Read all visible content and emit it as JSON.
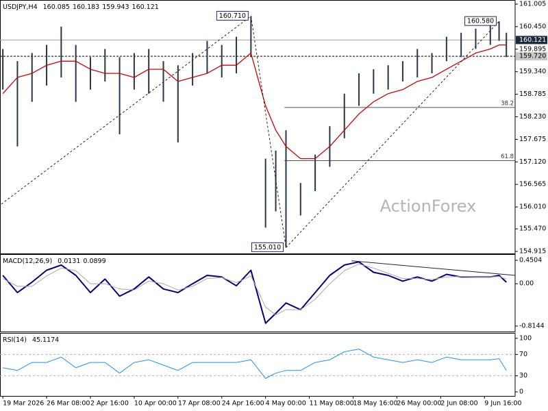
{
  "chart_data": [
    {
      "type": "hilo",
      "title": "USDJPY,H4",
      "readings": [
        160.085,
        160.183,
        159.943,
        160.121
      ],
      "watermark": "ActionForex",
      "x": [
        1,
        11,
        21,
        31,
        41,
        51,
        61,
        71,
        81,
        91,
        101,
        111,
        121,
        131,
        141,
        151,
        161,
        171,
        181,
        188,
        195,
        205,
        215,
        225,
        235,
        245,
        255,
        265,
        275,
        285,
        295,
        305,
        315,
        325,
        335,
        341,
        346
      ],
      "high": [
        159.9,
        159.6,
        159.8,
        160.0,
        160.45,
        160.0,
        159.7,
        159.9,
        159.7,
        159.8,
        159.9,
        159.6,
        159.5,
        159.8,
        160.1,
        160.0,
        160.2,
        160.71,
        157.2,
        157.4,
        157.9,
        156.6,
        157.3,
        158.0,
        158.8,
        159.3,
        159.4,
        159.5,
        159.6,
        159.9,
        159.8,
        160.2,
        160.3,
        160.4,
        160.5,
        160.58,
        160.3
      ],
      "low": [
        158.9,
        157.5,
        158.6,
        159.0,
        159.2,
        158.6,
        158.9,
        159.1,
        157.8,
        158.9,
        158.8,
        158.6,
        157.6,
        159.0,
        159.3,
        159.2,
        159.3,
        159.7,
        155.5,
        155.9,
        155.01,
        155.8,
        156.4,
        157.0,
        157.7,
        158.5,
        158.8,
        158.9,
        159.1,
        159.2,
        159.3,
        159.6,
        159.7,
        159.9,
        160.0,
        160.1,
        159.7
      ],
      "color": "#263646",
      "series": [
        {
          "color": "#d40000",
          "values": [
            158.8,
            159.2,
            159.3,
            159.5,
            159.6,
            159.6,
            159.4,
            159.3,
            159.3,
            159.2,
            159.4,
            159.4,
            159.1,
            159.2,
            159.3,
            159.5,
            159.5,
            159.8,
            158.5,
            157.9,
            157.5,
            157.2,
            157.2,
            157.5,
            157.9,
            158.3,
            158.6,
            158.8,
            158.9,
            159.1,
            159.2,
            159.4,
            159.6,
            159.8,
            159.9,
            160.0,
            160.0
          ]
        }
      ],
      "xlim": [
        0,
        352
      ],
      "ylim": [
        154.865,
        161.089
      ],
      "yticks": [
        161.005,
        {
          "value": 160.45,
          "label": "160.450"
        },
        159.895,
        {
          "value": 159.34,
          "label": "159.340"
        },
        158.785,
        {
          "value": 158.23,
          "label": "158.230"
        },
        157.675,
        {
          "value": 157.12,
          "label": "157.120"
        },
        156.565,
        {
          "value": 156.01,
          "label": "156.010"
        },
        {
          "value": 155.47,
          "label": "155.470"
        },
        154.915
      ],
      "fib": [
        {
          "ratio": 38.2,
          "price": 158.46,
          "x": 194
        },
        {
          "ratio": 61.8,
          "price": 157.15,
          "x": 194
        }
      ],
      "trendlines": [
        {
          "x": [
            0,
            171
          ],
          "y": [
            156.08,
            160.71
          ],
          "style": "dashed"
        },
        {
          "x": [
            171,
            195
          ],
          "y": [
            160.71,
            155.01
          ],
          "style": "dashed"
        },
        {
          "x": [
            195,
            341
          ],
          "y": [
            155.01,
            160.58
          ],
          "style": "dashed"
        }
      ],
      "annotations": [
        {
          "x": 171,
          "value": 160.71,
          "label": "160.710"
        },
        {
          "x": 195,
          "value": 155.01,
          "label": "155.010"
        },
        {
          "x": 341,
          "value": 160.58,
          "label": "160.580"
        }
      ],
      "price_tags": [
        {
          "value": 160.121,
          "color": "#1f2a3c",
          "text_color": "#ffffff",
          "line": "solid"
        },
        {
          "value": 159.72,
          "label": "159.720",
          "color": "#c8c8c8",
          "text_color": "#000000",
          "line": "dashed"
        }
      ]
    },
    {
      "type": "line",
      "title": "MACD(12,26,9)",
      "readings": [
        0.0131,
        0.0899
      ],
      "x": [
        1,
        11,
        21,
        31,
        41,
        51,
        61,
        71,
        81,
        91,
        101,
        111,
        121,
        131,
        141,
        151,
        161,
        171,
        181,
        188,
        195,
        205,
        215,
        225,
        235,
        245,
        255,
        265,
        275,
        285,
        295,
        305,
        315,
        325,
        335,
        341,
        346
      ],
      "series": [
        {
          "color": "#000080",
          "width": 2,
          "values": [
            0.16,
            -0.17,
            0.03,
            0.26,
            0.36,
            0.16,
            -0.17,
            0.09,
            -0.24,
            -0.1,
            0.13,
            -0.1,
            -0.17,
            0,
            0.16,
            0.13,
            -0.04,
            0.26,
            -0.76,
            -0.57,
            -0.37,
            -0.5,
            -0.17,
            0.16,
            0.36,
            0.42,
            0.22,
            0.16,
            0.05,
            0.13,
            0.05,
            0.18,
            0.13,
            0.13,
            0.13,
            0.16,
            0.03
          ]
        },
        {
          "color": "#a8a8a8",
          "width": 1,
          "values": [
            0.1,
            -0.05,
            -0.05,
            0.15,
            0.3,
            0.25,
            0,
            0,
            -0.1,
            -0.12,
            0.05,
            0,
            -0.12,
            -0.05,
            0.1,
            0.12,
            0.02,
            0.15,
            -0.45,
            -0.6,
            -0.5,
            -0.5,
            -0.3,
            0,
            0.25,
            0.38,
            0.3,
            0.2,
            0.1,
            0.1,
            0.08,
            0.13,
            0.14,
            0.13,
            0.13,
            0.14,
            0.09
          ]
        }
      ],
      "xlim": [
        0,
        352
      ],
      "ylim": [
        -0.92,
        0.556
      ],
      "yticks": [
        0.4504,
        {
          "value": 0,
          "label": "0.00"
        },
        -0.8144
      ],
      "trendlines": [
        {
          "x": [
            240,
            352
          ],
          "y": [
            0.44,
            0.16
          ],
          "style": "solid"
        }
      ]
    },
    {
      "type": "line",
      "title": "RSI(14)",
      "readings": [
        45.1174
      ],
      "x": [
        1,
        11,
        21,
        31,
        41,
        51,
        61,
        71,
        81,
        91,
        101,
        111,
        121,
        131,
        141,
        151,
        161,
        171,
        181,
        188,
        195,
        205,
        215,
        225,
        235,
        245,
        255,
        265,
        275,
        285,
        295,
        305,
        315,
        325,
        335,
        341,
        346
      ],
      "series": [
        {
          "color": "#1e90ff",
          "width": 1,
          "values": [
            45,
            40,
            55,
            55,
            65,
            45,
            55,
            55,
            35,
            55,
            60,
            50,
            40,
            55,
            55,
            55,
            55,
            60,
            25,
            35,
            40,
            40,
            55,
            60,
            75,
            80,
            65,
            60,
            55,
            60,
            55,
            65,
            60,
            60,
            60,
            62,
            40
          ]
        }
      ],
      "xlim": [
        0,
        352
      ],
      "ylim": [
        -7.6,
        108.9
      ],
      "yticks": [
        100,
        70,
        30,
        0
      ],
      "levels": [
        70,
        30
      ],
      "xticks": [
        {
          "value": 1,
          "label": "19 Mar 2026"
        },
        {
          "value": 31,
          "label": "26 Mar 08:00"
        },
        {
          "value": 61,
          "label": "2 Apr 16:00"
        },
        {
          "value": 91,
          "label": "10 Apr 00:00"
        },
        {
          "value": 121,
          "label": "17 Apr 08:00"
        },
        {
          "value": 151,
          "label": "24 Apr 16:00"
        },
        {
          "value": 181,
          "label": "4 May 00:00"
        },
        {
          "value": 211,
          "label": "11 May 08:00"
        },
        {
          "value": 241,
          "label": "18 May 16:00"
        },
        {
          "value": 271,
          "label": "26 May 00:00"
        },
        {
          "value": 301,
          "label": "2 Jun 08:00"
        },
        {
          "value": 331,
          "label": "9 Jun 16:00"
        }
      ]
    }
  ]
}
